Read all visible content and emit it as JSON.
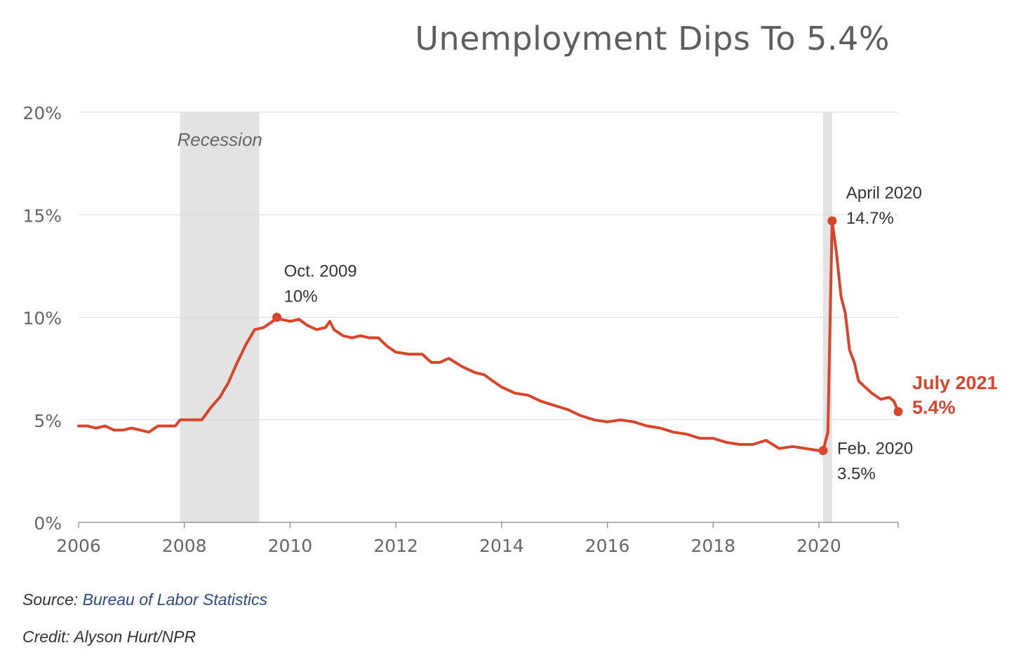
{
  "title": "Unemployment Dips To 5.4%",
  "source_label": "Source: ",
  "source_name": "Bureau of Labor Statistics",
  "credit": "Credit: Alyson Hurt/NPR",
  "colors": {
    "line": "#d8452b",
    "recession": "#e3e3e3",
    "grid": "#d9d9d9",
    "axis_text": "#666666",
    "annotation_text": "#333333",
    "link": "#2b4a8b"
  },
  "chart_data": {
    "type": "line",
    "title": "Unemployment Dips To 5.4%",
    "xlabel": "",
    "ylabel": "",
    "xlim": [
      2006,
      2021.5
    ],
    "ylim": [
      0,
      20
    ],
    "grid": true,
    "x_ticks": [
      "2006",
      "2008",
      "2010",
      "2012",
      "2014",
      "2016",
      "2018",
      "2020"
    ],
    "y_ticks": [
      "0%",
      "5%",
      "10%",
      "15%",
      "20%"
    ],
    "recession_label": "Recession",
    "recessions": [
      {
        "start": 2007.92,
        "end": 2009.42
      },
      {
        "start": 2020.08,
        "end": 2020.25
      }
    ],
    "series": [
      {
        "x": [
          2006.0,
          2006.17,
          2006.33,
          2006.5,
          2006.67,
          2006.83,
          2007.0,
          2007.17,
          2007.33,
          2007.5,
          2007.67,
          2007.83,
          2007.92,
          2008.0,
          2008.17,
          2008.33,
          2008.5,
          2008.67,
          2008.83,
          2009.0,
          2009.17,
          2009.33,
          2009.5,
          2009.67,
          2009.75,
          2009.83,
          2010.0,
          2010.17,
          2010.33,
          2010.5,
          2010.67,
          2010.75,
          2010.83,
          2011.0,
          2011.17,
          2011.33,
          2011.5,
          2011.67,
          2011.83,
          2012.0,
          2012.25,
          2012.5,
          2012.67,
          2012.83,
          2013.0,
          2013.25,
          2013.5,
          2013.67,
          2013.83,
          2014.0,
          2014.25,
          2014.5,
          2014.75,
          2015.0,
          2015.25,
          2015.5,
          2015.75,
          2016.0,
          2016.25,
          2016.5,
          2016.75,
          2017.0,
          2017.25,
          2017.5,
          2017.75,
          2018.0,
          2018.25,
          2018.5,
          2018.75,
          2019.0,
          2019.25,
          2019.5,
          2019.75,
          2020.0,
          2020.08,
          2020.17,
          2020.25,
          2020.33,
          2020.42,
          2020.5,
          2020.58,
          2020.67,
          2020.75,
          2020.83,
          2021.0,
          2021.17,
          2021.33,
          2021.42,
          2021.5
        ],
        "y": [
          4.7,
          4.7,
          4.6,
          4.7,
          4.5,
          4.5,
          4.6,
          4.5,
          4.4,
          4.7,
          4.7,
          4.7,
          5.0,
          5.0,
          5.0,
          5.0,
          5.6,
          6.1,
          6.8,
          7.8,
          8.7,
          9.4,
          9.5,
          9.8,
          10.0,
          9.9,
          9.8,
          9.9,
          9.6,
          9.4,
          9.5,
          9.8,
          9.4,
          9.1,
          9.0,
          9.1,
          9.0,
          9.0,
          8.6,
          8.3,
          8.2,
          8.2,
          7.8,
          7.8,
          8.0,
          7.6,
          7.3,
          7.2,
          6.9,
          6.6,
          6.3,
          6.2,
          5.9,
          5.7,
          5.5,
          5.2,
          5.0,
          4.9,
          5.0,
          4.9,
          4.7,
          4.6,
          4.4,
          4.3,
          4.1,
          4.1,
          3.9,
          3.8,
          3.8,
          4.0,
          3.6,
          3.7,
          3.6,
          3.5,
          3.5,
          4.4,
          14.7,
          13.2,
          11.0,
          10.2,
          8.4,
          7.8,
          6.9,
          6.7,
          6.3,
          6.0,
          6.1,
          5.9,
          5.4
        ]
      }
    ],
    "annotations": [
      {
        "x": 2009.75,
        "y": 10.0,
        "date": "Oct. 2009",
        "value": "10%",
        "highlight": false
      },
      {
        "x": 2020.25,
        "y": 14.7,
        "date": "April 2020",
        "value": "14.7%",
        "highlight": false
      },
      {
        "x": 2020.08,
        "y": 3.5,
        "date": "Feb. 2020",
        "value": "3.5%",
        "highlight": false
      },
      {
        "x": 2021.5,
        "y": 5.4,
        "date": "July 2021",
        "value": "5.4%",
        "highlight": true
      }
    ]
  }
}
